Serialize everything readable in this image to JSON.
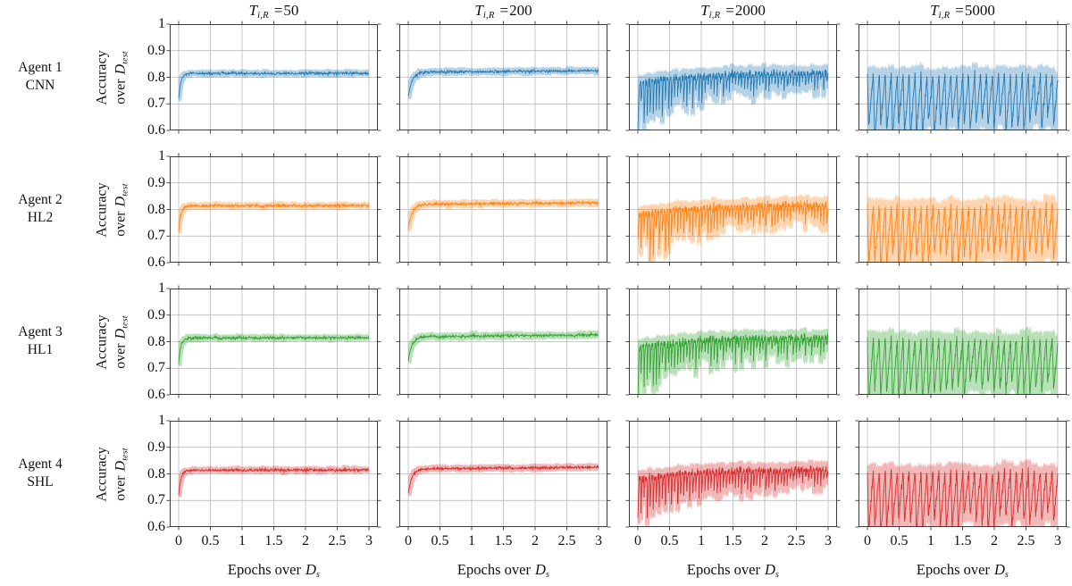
{
  "figure": {
    "background": "#ffffff",
    "grid_color": "#bbbbbb",
    "spine_color": "#3c3c3c",
    "text_color": "#111111"
  },
  "chart_data": {
    "type": "line",
    "layout": "4x4 small-multiples; rows are agents, columns are update intervals T_i,R",
    "grid": true,
    "legend": "none",
    "rows": [
      {
        "label1": "Agent 1",
        "label2": "CNN",
        "color": "#1f77b4"
      },
      {
        "label1": "Agent 2",
        "label2": "HL2",
        "color": "#ff7f0e"
      },
      {
        "label1": "Agent 3",
        "label2": "HL1",
        "color": "#2ca02c"
      },
      {
        "label1": "Agent 4",
        "label2": "SHL",
        "color": "#d62728"
      }
    ],
    "x": {
      "label": "Epochs over D_s",
      "label_pieces": {
        "prefix": "Epochs over",
        "D": "D",
        "sub": "s"
      },
      "range": [
        0,
        3
      ],
      "ticks": [
        0,
        0.5,
        1,
        1.5,
        2,
        2.5,
        3
      ],
      "tick_labels": [
        "0",
        "0.5",
        "1",
        "1.5",
        "2",
        "2.5",
        "3"
      ]
    },
    "y": {
      "label": "Accuracy over D_test",
      "label_pieces": {
        "line1": "Accuracy",
        "over": "over",
        "D": "D",
        "sub": "test"
      },
      "range": [
        0.6,
        1.0
      ],
      "ticks": [
        1.0,
        0.9,
        0.8,
        0.7,
        0.6
      ],
      "tick_labels": [
        "1",
        "0.9",
        "0.8",
        "0.7",
        "0.6"
      ]
    },
    "columns": [
      {
        "T": 50,
        "title": {
          "T": "T",
          "sub": "i,R",
          "eq": "=",
          "value": "50"
        },
        "curve": {
          "type": "smooth",
          "points": 460,
          "start": 0.72,
          "plateau": 0.814,
          "tau": 0.035,
          "slope": 0.001,
          "noise": 0.0028,
          "band_window": 7,
          "band_pad": 0.009
        },
        "mean_trend": [
          [
            0,
            0.72
          ],
          [
            0.1,
            0.808
          ],
          [
            0.5,
            0.814
          ],
          [
            1,
            0.814
          ],
          [
            2,
            0.814
          ],
          [
            3,
            0.813
          ]
        ]
      },
      {
        "T": 200,
        "title": {
          "T": "T",
          "sub": "i,R",
          "eq": "=",
          "value": "200"
        },
        "curve": {
          "type": "smooth",
          "points": 460,
          "start": 0.728,
          "plateau": 0.819,
          "tau": 0.06,
          "slope": 0.006,
          "noise": 0.0028,
          "band_window": 7,
          "band_pad": 0.01
        },
        "mean_trend": [
          [
            0,
            0.73
          ],
          [
            0.2,
            0.812
          ],
          [
            1,
            0.82
          ],
          [
            2,
            0.822
          ],
          [
            3,
            0.825
          ]
        ]
      },
      {
        "T": 2000,
        "title": {
          "T": "T",
          "sub": "i,R",
          "eq": "=",
          "value": "2000"
        },
        "curve": {
          "type": "spiky",
          "points": 920,
          "base_start": 0.778,
          "base_end": 0.818,
          "base_tau": 0.9,
          "period": 0.048,
          "depth_start": 0.2,
          "depth_end": 0.062,
          "depth_tau": 1.1,
          "spike_width": 0.5,
          "noise": 0.007,
          "band_window": 11,
          "band_pad_top": 0.02,
          "band_pad_bottom": 0.028
        },
        "envelope_top": [
          [
            0,
            0.78
          ],
          [
            1,
            0.81
          ],
          [
            2,
            0.816
          ],
          [
            3,
            0.818
          ]
        ],
        "envelope_bottom": [
          [
            0,
            0.6
          ],
          [
            1,
            0.66
          ],
          [
            2,
            0.71
          ],
          [
            3,
            0.74
          ]
        ]
      },
      {
        "T": 5000,
        "title": {
          "T": "T",
          "sub": "i,R",
          "eq": "=",
          "value": "5000"
        },
        "curve": {
          "type": "sawtooth",
          "points": 880,
          "top": 0.813,
          "depth_start": 0.225,
          "depth_end": 0.185,
          "period": 0.094,
          "crash_frac": 0.22,
          "noise": 0.008,
          "band_window": 13,
          "band_pad_top": 0.028,
          "band_pad_bottom": 0.034
        },
        "envelope_top": [
          [
            0,
            0.81
          ],
          [
            3,
            0.82
          ]
        ],
        "envelope_bottom": [
          [
            0,
            0.59
          ],
          [
            3,
            0.63
          ]
        ]
      }
    ]
  }
}
